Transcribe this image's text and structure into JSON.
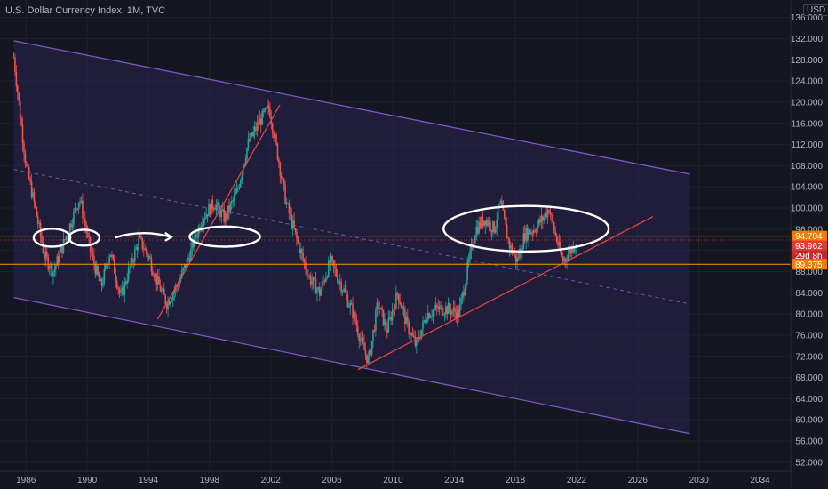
{
  "header": {
    "title": "U.S. Dollar Currency Index, 1M, TVC",
    "currency": "USD"
  },
  "colors": {
    "background": "#141722",
    "grid": "#1f2230",
    "channel_line": "#7e57c2",
    "channel_fill": "#2a2350",
    "mid_line": "#6a5aa8",
    "trend_line": "#ef4444",
    "candle_up": "#26a69a",
    "candle_down": "#ef5350",
    "level_line": "#ff9800",
    "tag_orange": "#f57c00",
    "tag_red": "#e53935",
    "tag_red_dark": "#c62828",
    "drawing": "#ffffff",
    "axis_text": "#b2b5be"
  },
  "chart_data": {
    "type": "candlestick",
    "title": "U.S. Dollar Currency Index, 1M, TVC",
    "x_axis": {
      "range": [
        1984.3,
        2036.0
      ],
      "ticks": [
        1986,
        1990,
        1994,
        1998,
        2002,
        2006,
        2010,
        2014,
        2018,
        2022,
        2026,
        2030,
        2034
      ]
    },
    "y_axis": {
      "range": [
        50.3,
        139.3
      ],
      "unit": "USD",
      "ticks": [
        52,
        56,
        60,
        64,
        68,
        72,
        76,
        80,
        84,
        88,
        92,
        96,
        100,
        104,
        108,
        112,
        116,
        120,
        124,
        128,
        132,
        136
      ]
    },
    "price_path": [
      [
        1985.2,
        128.5
      ],
      [
        1985.6,
        118
      ],
      [
        1986.0,
        108
      ],
      [
        1986.6,
        100
      ],
      [
        1987.2,
        91
      ],
      [
        1987.8,
        88
      ],
      [
        1988.3,
        92
      ],
      [
        1988.9,
        97
      ],
      [
        1989.5,
        102
      ],
      [
        1990.2,
        92
      ],
      [
        1990.9,
        85
      ],
      [
        1991.5,
        92
      ],
      [
        1992.2,
        83
      ],
      [
        1992.7,
        88
      ],
      [
        1993.4,
        94
      ],
      [
        1994.0,
        91
      ],
      [
        1994.6,
        86
      ],
      [
        1995.2,
        82
      ],
      [
        1996.0,
        86
      ],
      [
        1996.8,
        92
      ],
      [
        1997.5,
        98
      ],
      [
        1998.3,
        101
      ],
      [
        1999.0,
        98
      ],
      [
        1999.8,
        103
      ],
      [
        2000.5,
        112
      ],
      [
        2001.2,
        116
      ],
      [
        2001.9,
        119
      ],
      [
        2002.4,
        111
      ],
      [
        2003.0,
        101
      ],
      [
        2003.8,
        93
      ],
      [
        2004.5,
        87
      ],
      [
        2005.2,
        84
      ],
      [
        2005.9,
        90
      ],
      [
        2006.7,
        85
      ],
      [
        2007.4,
        80
      ],
      [
        2008.0,
        74
      ],
      [
        2008.4,
        71
      ],
      [
        2009.0,
        82
      ],
      [
        2009.6,
        77
      ],
      [
        2010.3,
        84
      ],
      [
        2010.9,
        78
      ],
      [
        2011.5,
        74
      ],
      [
        2012.2,
        80
      ],
      [
        2012.9,
        81
      ],
      [
        2013.6,
        81
      ],
      [
        2014.3,
        80
      ],
      [
        2014.9,
        89
      ],
      [
        2015.4,
        96
      ],
      [
        2016.0,
        98
      ],
      [
        2016.6,
        96
      ],
      [
        2017.0,
        101
      ],
      [
        2017.6,
        93
      ],
      [
        2018.1,
        90
      ],
      [
        2018.6,
        95
      ],
      [
        2019.2,
        96
      ],
      [
        2019.8,
        98
      ],
      [
        2020.2,
        100
      ],
      [
        2020.6,
        95
      ],
      [
        2021.1,
        90
      ],
      [
        2021.6,
        92
      ],
      [
        2022.0,
        94
      ]
    ],
    "channel": {
      "upper": {
        "from": [
          1985.2,
          131.6
        ],
        "to": [
          2029.4,
          106.4
        ]
      },
      "lower": {
        "from": [
          1985.2,
          83.1
        ],
        "to": [
          2029.4,
          57.4
        ]
      },
      "middle": {
        "from": [
          1985.2,
          107.3
        ],
        "to": [
          2029.4,
          81.9
        ]
      }
    },
    "trend_lines": [
      {
        "from": [
          1994.6,
          79.0
        ],
        "to": [
          2002.6,
          119.5
        ]
      },
      {
        "from": [
          2007.7,
          69.5
        ],
        "to": [
          2027.0,
          98.4
        ]
      }
    ],
    "horizontal_levels": [
      94.704,
      89.375
    ],
    "price_tags": [
      {
        "text": "94.704",
        "value": 94.704
      },
      {
        "text": "93.962",
        "value": 93.962
      },
      {
        "text": "29d 8h",
        "value": 92.2
      },
      {
        "text": "89.375",
        "value": 89.375
      }
    ],
    "annotations": [
      {
        "shape": "ellipse",
        "center": [
          1987.7,
          94.4
        ],
        "radius": [
          1.2,
          1.7
        ]
      },
      {
        "shape": "ellipse",
        "center": [
          1989.8,
          94.4
        ],
        "radius": [
          1.0,
          1.5
        ]
      },
      {
        "shape": "arrow",
        "from": [
          1991.8,
          94.4
        ],
        "to": [
          1995.5,
          94.5
        ]
      },
      {
        "shape": "ellipse",
        "center": [
          1999.0,
          94.6
        ],
        "radius": [
          2.3,
          1.9
        ]
      },
      {
        "shape": "ellipse",
        "center": [
          2018.7,
          96.1
        ],
        "radius": [
          5.4,
          4.3
        ]
      }
    ]
  }
}
